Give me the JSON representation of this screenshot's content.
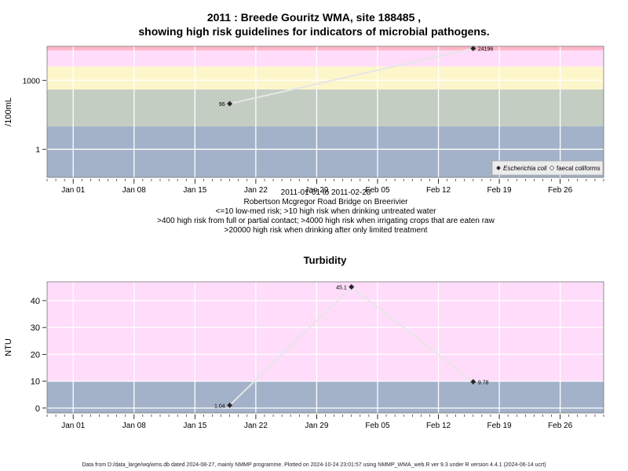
{
  "header": {
    "title_line1": "2011 : Breede Gouritz WMA, site 188485 ,",
    "title_line2": "showing high risk guidelines for indicators of microbial pathogens."
  },
  "captions": {
    "line1": "2011-01-01 to 2011-02-28",
    "line2": "Robertson Mcgregor Road Bridge on Breerivier",
    "line3": "<=10 low-med risk; >10 high risk when drinking untreated water",
    "line4": ">400 high risk from full or partial contact; >4000 high risk when irrigating crops that are eaten raw",
    "line5": ">20000 high risk when drinking after only limited treatment"
  },
  "footer": {
    "text": "Data from D:/data_large/wq/wms.db dated 2024-08-27, mainly NMMP programme. Plotted on 2024-10-24 23:01:57 using NMMP_WMA_web.R ver 9.3 under R version 4.4.1 (2024-06-14 ucrt)"
  },
  "chart_data": [
    {
      "type": "line",
      "title": "",
      "ylabel": "/100mL",
      "xlabel": "",
      "yscale": "log",
      "x_ticks": [
        {
          "date": "2011-01-01",
          "label": "Jan 01"
        },
        {
          "date": "2011-01-08",
          "label": "Jan 08"
        },
        {
          "date": "2011-01-15",
          "label": "Jan 15"
        },
        {
          "date": "2011-01-22",
          "label": "Jan 22"
        },
        {
          "date": "2011-01-29",
          "label": "Jan 29"
        },
        {
          "date": "2011-02-05",
          "label": "Feb 05"
        },
        {
          "date": "2011-02-12",
          "label": "Feb 12"
        },
        {
          "date": "2011-02-19",
          "label": "Feb 19"
        },
        {
          "date": "2011-02-26",
          "label": "Feb 26"
        }
      ],
      "xlim": [
        "2010-12-29",
        "2011-03-03"
      ],
      "y_ticks": [
        {
          "value": 1,
          "label": "1"
        },
        {
          "value": 1000,
          "label": "1000"
        }
      ],
      "ylim": [
        0.06,
        30000
      ],
      "risk_bands": [
        {
          "from": 0.06,
          "to": 10,
          "color": "#a3b2c9"
        },
        {
          "from": 10,
          "to": 400,
          "color": "#c3cdc2"
        },
        {
          "from": 400,
          "to": 4000,
          "color": "#fdf6cb"
        },
        {
          "from": 4000,
          "to": 20000,
          "color": "#fedcfa"
        },
        {
          "from": 20000,
          "to": 30000,
          "color": "#feb5c7"
        }
      ],
      "series": [
        {
          "name": "Escherichia coli",
          "points": [
            {
              "x": "2011-01-19",
              "y": 96,
              "label": "96"
            },
            {
              "x": "2011-02-16",
              "y": 24196,
              "label": "24196"
            }
          ]
        },
        {
          "name": "faecal coliforms",
          "points": []
        }
      ],
      "legend": {
        "position": "bottom-right",
        "entries": [
          "Escherichia coli",
          "faecal coliforms"
        ]
      },
      "grid": true
    },
    {
      "type": "line",
      "title": "Turbidity",
      "ylabel": "NTU",
      "xlabel": "",
      "x_ticks": [
        {
          "date": "2011-01-01",
          "label": "Jan 01"
        },
        {
          "date": "2011-01-08",
          "label": "Jan 08"
        },
        {
          "date": "2011-01-15",
          "label": "Jan 15"
        },
        {
          "date": "2011-01-22",
          "label": "Jan 22"
        },
        {
          "date": "2011-01-29",
          "label": "Jan 29"
        },
        {
          "date": "2011-02-05",
          "label": "Feb 05"
        },
        {
          "date": "2011-02-12",
          "label": "Feb 12"
        },
        {
          "date": "2011-02-19",
          "label": "Feb 19"
        },
        {
          "date": "2011-02-26",
          "label": "Feb 26"
        }
      ],
      "xlim": [
        "2010-12-29",
        "2011-03-03"
      ],
      "y_ticks": [
        {
          "value": 0,
          "label": "0"
        },
        {
          "value": 10,
          "label": "10"
        },
        {
          "value": 20,
          "label": "20"
        },
        {
          "value": 30,
          "label": "30"
        },
        {
          "value": 40,
          "label": "40"
        }
      ],
      "ylim": [
        -1.8,
        47
      ],
      "risk_bands": [
        {
          "from": -1.8,
          "to": 10,
          "color": "#a3b2c9"
        },
        {
          "from": 10,
          "to": 47,
          "color": "#fedcfa"
        }
      ],
      "series": [
        {
          "name": "Turbidity",
          "points": [
            {
              "x": "2011-01-19",
              "y": 1.04,
              "label": "1.04"
            },
            {
              "x": "2011-02-02",
              "y": 45.1,
              "label": "45.1"
            },
            {
              "x": "2011-02-16",
              "y": 9.78,
              "label": "9.78"
            }
          ]
        }
      ],
      "grid": true
    }
  ]
}
